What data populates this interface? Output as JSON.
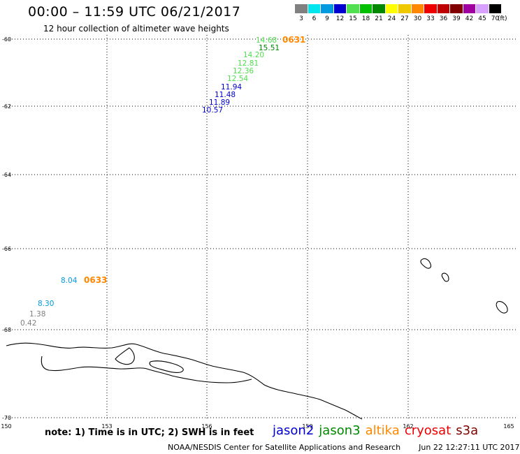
{
  "title": "00:00 – 11:59 UTC 06/21/2017",
  "subtitle": "12 hour collection of altimeter wave heights",
  "legend": {
    "unit": "(ft)",
    "items": [
      {
        "label": "3",
        "color": "#808080"
      },
      {
        "label": "6",
        "color": "#00e5ee"
      },
      {
        "label": "9",
        "color": "#009ae0"
      },
      {
        "label": "12",
        "color": "#0000d0"
      },
      {
        "label": "15",
        "color": "#50e050"
      },
      {
        "label": "18",
        "color": "#00c000"
      },
      {
        "label": "21",
        "color": "#008800"
      },
      {
        "label": "24",
        "color": "#ffff00"
      },
      {
        "label": "27",
        "color": "#f0c800"
      },
      {
        "label": "30",
        "color": "#ff8800"
      },
      {
        "label": "33",
        "color": "#ee0000"
      },
      {
        "label": "36",
        "color": "#c00000"
      },
      {
        "label": "39",
        "color": "#800000"
      },
      {
        "label": "42",
        "color": "#a000a0"
      },
      {
        "label": "45",
        "color": "#d8a0ff"
      },
      {
        "label": "70",
        "color": "#000000"
      }
    ]
  },
  "map": {
    "lon_ticks": [
      "150",
      "153",
      "156",
      "159",
      "162",
      "165"
    ],
    "lat_ticks": [
      "-60",
      "-62",
      "-64",
      "-66",
      "-68",
      "-70"
    ]
  },
  "observations": [
    {
      "text": "14.68",
      "color": "#50e050"
    },
    {
      "text": "15.51",
      "color": "#008800"
    },
    {
      "text": "14.20",
      "color": "#50e050"
    },
    {
      "text": "12.81",
      "color": "#50e050"
    },
    {
      "text": "12.36",
      "color": "#50e050"
    },
    {
      "text": "12.54",
      "color": "#50e050"
    },
    {
      "text": "11.94",
      "color": "#0000d0"
    },
    {
      "text": "11.48",
      "color": "#0000d0"
    },
    {
      "text": "11.89",
      "color": "#0000d0"
    },
    {
      "text": "10.57",
      "color": "#0000d0"
    },
    {
      "text": "8.04",
      "color": "#009ae0"
    },
    {
      "text": "8.30",
      "color": "#009ae0"
    },
    {
      "text": "1.38",
      "color": "#808080"
    },
    {
      "text": "0.42",
      "color": "#808080"
    }
  ],
  "pass_times": [
    {
      "text": "0631",
      "color": "#ff8800"
    },
    {
      "text": "0633",
      "color": "#ff8800"
    }
  ],
  "note": "note: 1) Time is in UTC; 2) SWH is in feet",
  "satellites": [
    {
      "name": "jason2",
      "color": "#0000d0"
    },
    {
      "name": "jason3",
      "color": "#008800"
    },
    {
      "name": "altika",
      "color": "#ff8800"
    },
    {
      "name": "cryosat",
      "color": "#ee0000"
    },
    {
      "name": "s3a",
      "color": "#800000"
    }
  ],
  "footer": {
    "credit": "NOAA/NESDIS Center for Satellite Applications and Research",
    "timestamp": "Jun 22 12:27:11 UTC 2017"
  }
}
